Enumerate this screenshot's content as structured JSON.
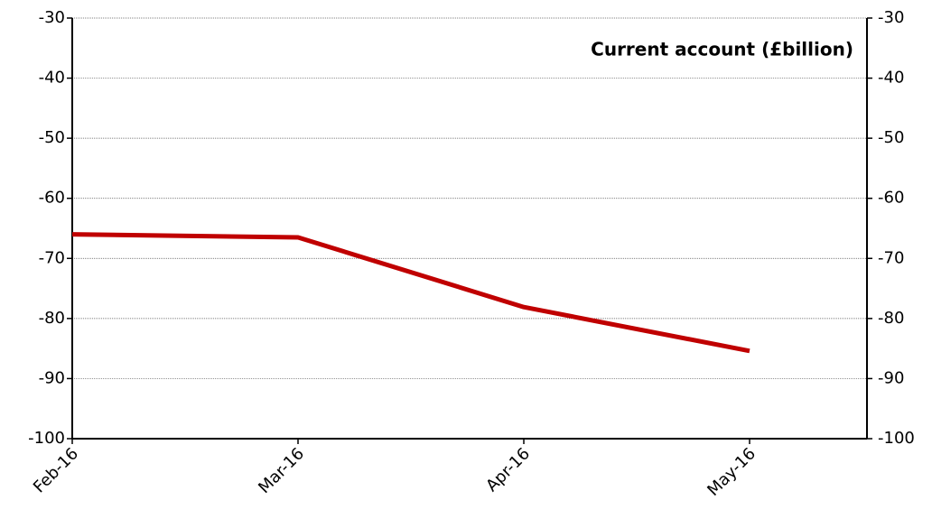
{
  "chart_data": {
    "type": "line",
    "title": "Current account (£billion)",
    "categories": [
      "Feb-16",
      "Mar-16",
      "Apr-16",
      "May-16"
    ],
    "series": [
      {
        "name": "Current account",
        "color": "#c00000",
        "values": [
          -66.0,
          -66.5,
          -78.1,
          -85.4
        ]
      }
    ],
    "ylim": [
      -100,
      -30
    ],
    "yticks": [
      -100,
      -90,
      -80,
      -70,
      -60,
      -50,
      -40,
      -30
    ],
    "y2lim": [
      -100,
      -30
    ],
    "y2ticks": [
      -100,
      -90,
      -80,
      -70,
      -60,
      -50,
      -40,
      -30
    ],
    "grid": true
  }
}
